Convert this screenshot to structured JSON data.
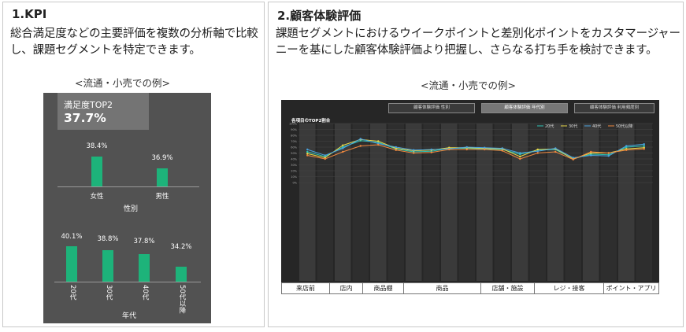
{
  "kpi_panel": {
    "title": "1.KPI",
    "description": "総合満足度などの主要評価を複数の分析軸で比較し、課題セグメントを特定できます。",
    "example_label": "<流通・小売での例>",
    "card": {
      "metric_label": "満足度TOP2",
      "metric_value": "37.7%",
      "gender": {
        "axis_label": "性別",
        "categories": [
          "女性",
          "男性"
        ],
        "value_labels": [
          "38.4%",
          "36.9%"
        ],
        "values": [
          38.4,
          36.9
        ]
      },
      "age": {
        "axis_label": "年代",
        "categories": [
          "20代",
          "30代",
          "40代",
          "50代以降"
        ],
        "value_labels": [
          "40.1%",
          "38.8%",
          "37.8%",
          "34.2%"
        ],
        "values": [
          40.1,
          38.8,
          37.8,
          34.2
        ]
      }
    }
  },
  "cx_panel": {
    "title": "2.顧客体験評価",
    "description": "課題セグメントにおけるウイークポイントと差別化ポイントをカスタマージャーニーを基にした顧客体験評価より把握し、さらなる打ち手を検討できます。",
    "example_label": "<流通・小売での例>",
    "tabs": [
      "顧客体験評価 性別",
      "顧客体験評価 年代別",
      "顧客体験評価 利用頻度別"
    ],
    "active_tab": 1,
    "chart_title": "各項目のTOP2割合",
    "stages": [
      "来店前",
      "店内",
      "商品棚",
      "商品",
      "店舗・施設",
      "レジ・接客",
      "ポイント・アプリ"
    ],
    "colors": {
      "s20": "#2ec4b6",
      "s30": "#e8d84a",
      "s40": "#4aa3df",
      "s50": "#f0883e",
      "bar": "#1db37a",
      "card": "#525252"
    }
  },
  "chart_data": {
    "type": "line",
    "title": "各項目のTOP2割合",
    "ylim": [
      0,
      100
    ],
    "yticks": [
      "100%",
      "90%",
      "80%",
      "70%",
      "60%",
      "50%",
      "40%",
      "30%",
      "20%",
      "10%",
      "0%"
    ],
    "legend_position": "top-right",
    "x_count": 20,
    "series": [
      {
        "name": "20代",
        "values": [
          52,
          44,
          60,
          71,
          68,
          57,
          52,
          53,
          58,
          58,
          57,
          56,
          48,
          55,
          56,
          40,
          48,
          47,
          60,
          62
        ]
      },
      {
        "name": "30代",
        "values": [
          49,
          42,
          63,
          73,
          70,
          58,
          54,
          55,
          59,
          59,
          58,
          57,
          44,
          56,
          57,
          40,
          50,
          50,
          57,
          59
        ]
      },
      {
        "name": "40代",
        "values": [
          56,
          46,
          58,
          74,
          66,
          60,
          55,
          56,
          57,
          60,
          59,
          58,
          50,
          53,
          58,
          42,
          46,
          45,
          62,
          65
        ]
      },
      {
        "name": "50代以降",
        "values": [
          46,
          40,
          52,
          62,
          64,
          55,
          50,
          51,
          56,
          56,
          56,
          54,
          40,
          50,
          52,
          39,
          52,
          50,
          55,
          57
        ]
      }
    ]
  }
}
